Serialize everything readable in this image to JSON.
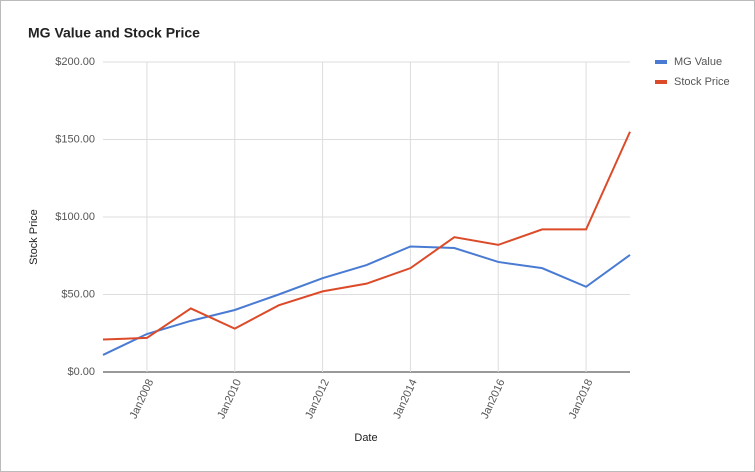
{
  "chart_data": {
    "type": "line",
    "title": "MG Value and Stock Price",
    "x_label": "Date",
    "y_label": "Stock Price",
    "x": [
      "2007-01",
      "2008-01",
      "2009-01",
      "2010-01",
      "2011-01",
      "2012-01",
      "2013-01",
      "2014-01",
      "2015-01",
      "2016-01",
      "2017-01",
      "2018-01",
      "2019-01"
    ],
    "series": [
      {
        "name": "MG Value",
        "color": "#4a7bd3",
        "values": [
          11,
          24.5,
          33,
          40,
          50,
          60.5,
          69,
          81,
          80,
          71,
          67,
          55,
          75.5
        ]
      },
      {
        "name": "Stock Price",
        "color": "#dc4b29",
        "values": [
          21,
          22,
          41,
          28,
          43,
          52,
          57,
          67,
          87,
          82,
          92,
          92,
          155
        ]
      }
    ],
    "xlim": [
      "2007-01",
      "2019-01"
    ],
    "xticks": [
      {
        "value": "2008-01",
        "label": "Jan2008"
      },
      {
        "value": "2010-01",
        "label": "Jan2010"
      },
      {
        "value": "2012-01",
        "label": "Jan2012"
      },
      {
        "value": "2014-01",
        "label": "Jan2014"
      },
      {
        "value": "2016-01",
        "label": "Jan2016"
      },
      {
        "value": "2018-01",
        "label": "Jan2018"
      }
    ],
    "ylim": [
      0,
      200
    ],
    "yticks": [
      {
        "value": 0,
        "label": "$0.00"
      },
      {
        "value": 50,
        "label": "$50.00"
      },
      {
        "value": 100,
        "label": "$100.00"
      },
      {
        "value": 150,
        "label": "$150.00"
      },
      {
        "value": 200,
        "label": "$200.00"
      }
    ],
    "grid": true,
    "legend": "right"
  }
}
